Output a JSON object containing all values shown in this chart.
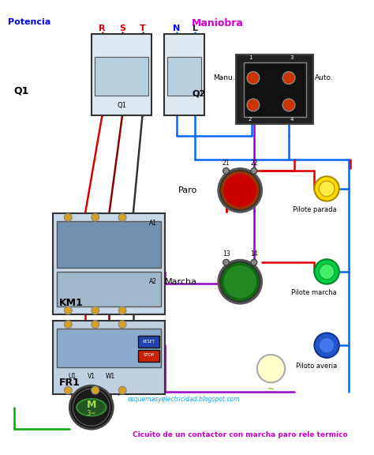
{
  "title": "Cicuito de un contactor con marcha paro rele termico",
  "title_color": "#cc00cc",
  "website": "esquemasyelectricidad.blogspot.com",
  "website_color": "#00aaff",
  "bg_color": "#ffffff",
  "label_potencia": "Potencia",
  "label_potencia_color": "#0000ff",
  "label_maniobra": "Maniobra",
  "label_maniobra_color": "#cc00cc",
  "label_Q1": "Q1",
  "label_Q2": "Q2",
  "label_KM1": "KM1",
  "label_FR1": "FR1",
  "label_paro": "Paro",
  "label_marcha": "Marcha",
  "label_manu": "Manu.",
  "label_auto": "Auto.",
  "label_piloto_parada": "Pilote parada",
  "label_piloto_marcha": "Pilote marcha",
  "label_piloto_averia": "Piloto averia",
  "label_U1": "U1",
  "label_V1": "V1",
  "label_W1": "W1",
  "label_M": "M",
  "label_M_sub": "3~",
  "label_R": "R",
  "label_S": "S",
  "label_T": "T",
  "label_N": "N",
  "label_L": "L",
  "wire_red": "#dd0000",
  "wire_blue": "#0066ff",
  "wire_purple": "#9900cc",
  "wire_green": "#00aa00",
  "wire_black": "#000000",
  "wire_brown": "#8B4513"
}
